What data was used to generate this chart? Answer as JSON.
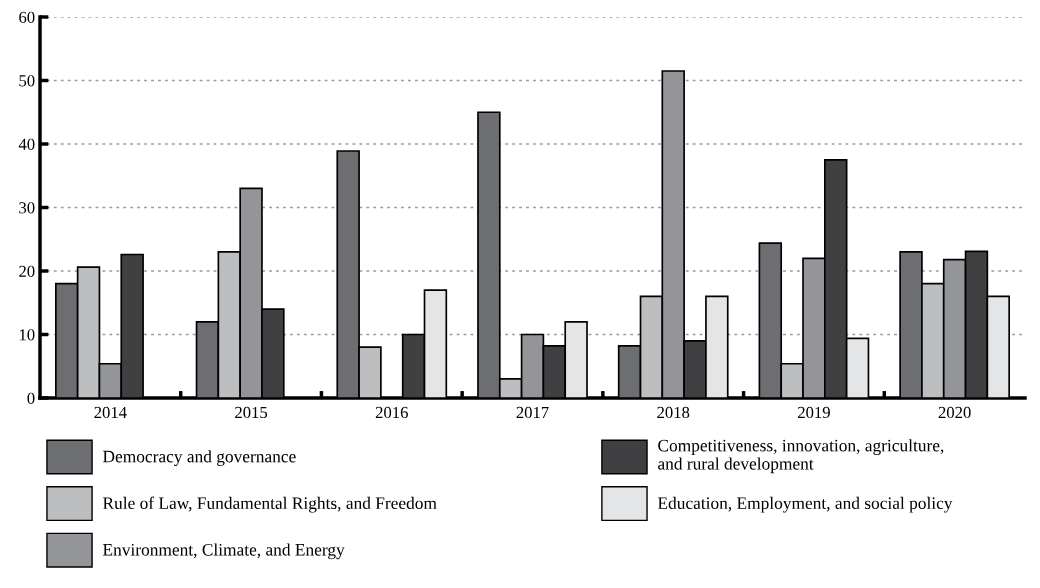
{
  "chart_data": {
    "type": "bar",
    "categories": [
      "2014",
      "2015",
      "2016",
      "2017",
      "2018",
      "2019",
      "2020"
    ],
    "series": [
      {
        "name": "Democracy and governance",
        "color": "#6d6e72",
        "values": [
          18,
          12,
          38.9,
          45,
          8.2,
          24.4,
          23
        ]
      },
      {
        "name": "Rule of Law, Fundamental Rights, and Freedom",
        "color": "#bdbec0",
        "values": [
          20.6,
          23,
          8,
          3,
          16,
          5.4,
          18
        ]
      },
      {
        "name": "Environment, Climate, and Energy",
        "color": "#949599",
        "values": [
          5.4,
          33,
          null,
          10,
          51.5,
          22,
          21.8
        ]
      },
      {
        "name": "Competitiveness, innovation, agriculture,\nand rural development",
        "color": "#404042",
        "values": [
          22.6,
          14,
          10,
          8.2,
          9,
          37.5,
          23.1
        ]
      },
      {
        "name": "Education, Employment, and social policy",
        "color": "#e4e5e7",
        "values": [
          null,
          null,
          17,
          12,
          16,
          9.4,
          16
        ]
      }
    ],
    "ylim": [
      0,
      60
    ],
    "yticks": [
      0,
      10,
      20,
      30,
      40,
      50,
      60
    ],
    "grid": "y",
    "legend": "bottom"
  }
}
